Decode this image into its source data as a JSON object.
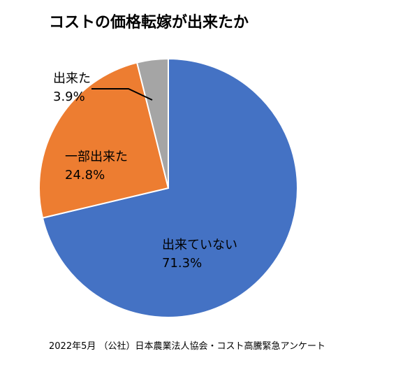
{
  "chart_data": {
    "type": "pie",
    "title": "コストの価格転嫁が出来たか",
    "start": "top",
    "direction": "clockwise",
    "slices": [
      {
        "label": "出来ていない",
        "value": 71.3,
        "value_label": "71.3%",
        "color": "#4472C4"
      },
      {
        "label": "一部出来た",
        "value": 24.8,
        "value_label": "24.8%",
        "color": "#ED7D31"
      },
      {
        "label": "出来た",
        "value": 3.9,
        "value_label": "3.9%",
        "color": "#A5A5A5"
      }
    ],
    "source": "2022年5月 （公社）日本農業法人協会・コスト高騰緊急アンケート"
  }
}
